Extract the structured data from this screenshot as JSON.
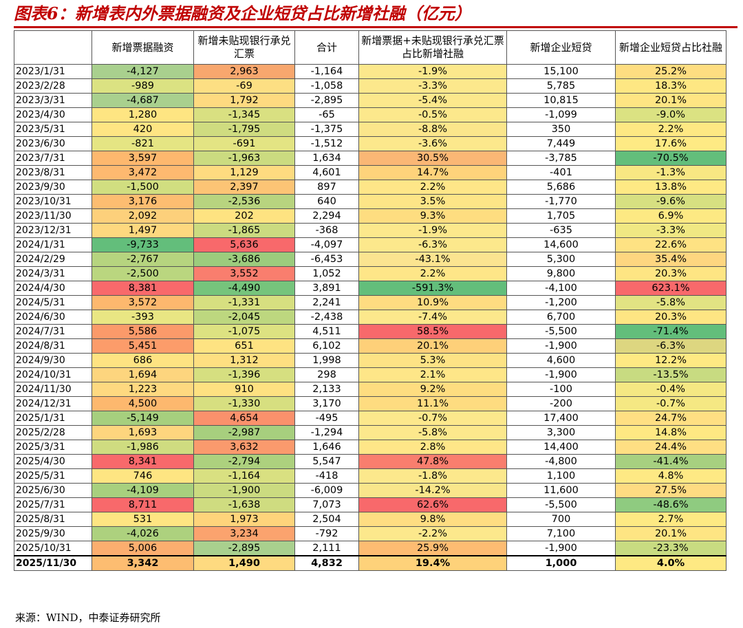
{
  "title": "图表6：新增表内外票据融资及企业短贷占比新增社融（亿元）",
  "headers": [
    "",
    "新增票据融资",
    "新增未贴现银行承兑汇票",
    "合计",
    "新增票据+未贴现银行承兑汇票占比新增社融",
    "新增企业短贷",
    "新增企业短贷占比社融"
  ],
  "rows": [
    [
      "2023/1/31",
      "-4,127",
      "2,963",
      "-1,164",
      "-1.9%",
      "15,100",
      "25.2%"
    ],
    [
      "2023/2/28",
      "-989",
      "-69",
      "-1,058",
      "-3.3%",
      "5,785",
      "18.3%"
    ],
    [
      "2023/3/31",
      "-4,687",
      "1,792",
      "-2,895",
      "-5.4%",
      "10,815",
      "20.1%"
    ],
    [
      "2023/4/30",
      "1,280",
      "-1,345",
      "-65",
      "-0.5%",
      "-1,099",
      "-9.0%"
    ],
    [
      "2023/5/31",
      "420",
      "-1,795",
      "-1,375",
      "-8.8%",
      "350",
      "2.2%"
    ],
    [
      "2023/6/30",
      "-821",
      "-691",
      "-1,512",
      "-3.6%",
      "7,449",
      "17.6%"
    ],
    [
      "2023/7/31",
      "3,597",
      "-1,963",
      "1,634",
      "30.5%",
      "-3,785",
      "-70.5%"
    ],
    [
      "2023/8/31",
      "3,472",
      "1,129",
      "4,601",
      "14.7%",
      "-401",
      "-1.3%"
    ],
    [
      "2023/9/30",
      "-1,500",
      "2,397",
      "897",
      "2.2%",
      "5,686",
      "13.8%"
    ],
    [
      "2023/10/31",
      "3,176",
      "-2,536",
      "640",
      "3.5%",
      "-1,770",
      "-9.6%"
    ],
    [
      "2023/11/30",
      "2,092",
      "202",
      "2,294",
      "9.3%",
      "1,705",
      "6.9%"
    ],
    [
      "2023/12/31",
      "1,497",
      "-1,865",
      "-368",
      "-1.9%",
      "-635",
      "-3.3%"
    ],
    [
      "2024/1/31",
      "-9,733",
      "5,636",
      "-4,097",
      "-6.3%",
      "14,600",
      "22.6%"
    ],
    [
      "2024/2/29",
      "-2,767",
      "-3,686",
      "-6,453",
      "-43.1%",
      "5,300",
      "35.4%"
    ],
    [
      "2024/3/31",
      "-2,500",
      "3,552",
      "1,052",
      "2.2%",
      "9,800",
      "20.3%"
    ],
    [
      "2024/4/30",
      "8,381",
      "-4,490",
      "3,891",
      "-591.3%",
      "-4,100",
      "623.1%"
    ],
    [
      "2024/5/31",
      "3,572",
      "-1,331",
      "2,241",
      "10.9%",
      "-1,200",
      "-5.8%"
    ],
    [
      "2024/6/30",
      "-393",
      "-2,045",
      "-2,438",
      "-7.4%",
      "6,700",
      "20.3%"
    ],
    [
      "2024/7/31",
      "5,586",
      "-1,075",
      "4,511",
      "58.5%",
      "-5,500",
      "-71.4%"
    ],
    [
      "2024/8/31",
      "5,451",
      "651",
      "6,102",
      "20.1%",
      "-1,900",
      "-6.3%"
    ],
    [
      "2024/9/30",
      "686",
      "1,312",
      "1,998",
      "5.3%",
      "4,600",
      "12.2%"
    ],
    [
      "2024/10/31",
      "1,694",
      "-1,396",
      "298",
      "2.1%",
      "-1,900",
      "-13.5%"
    ],
    [
      "2024/11/30",
      "1,223",
      "910",
      "2,133",
      "9.2%",
      "-100",
      "-0.4%"
    ],
    [
      "2024/12/31",
      "4,500",
      "-1,330",
      "3,170",
      "11.1%",
      "-200",
      "-0.7%"
    ],
    [
      "2025/1/31",
      "-5,149",
      "4,654",
      "-495",
      "-0.7%",
      "17,400",
      "24.7%"
    ],
    [
      "2025/2/28",
      "1,693",
      "-2,987",
      "-1,294",
      "-5.8%",
      "3,300",
      "14.8%"
    ],
    [
      "2025/3/31",
      "-1,986",
      "3,632",
      "1,646",
      "2.8%",
      "14,400",
      "24.4%"
    ],
    [
      "2025/4/30",
      "8,341",
      "-2,794",
      "5,547",
      "47.8%",
      "-4,800",
      "-41.4%"
    ],
    [
      "2025/5/31",
      "746",
      "-1,164",
      "-418",
      "-1.8%",
      "1,100",
      "4.8%"
    ],
    [
      "2025/6/30",
      "-4,109",
      "-1,900",
      "-6,009",
      "-14.2%",
      "11,600",
      "27.5%"
    ],
    [
      "2025/7/31",
      "8,711",
      "-1,638",
      "7,073",
      "62.6%",
      "-5,500",
      "-48.6%"
    ],
    [
      "2025/8/31",
      "531",
      "1,973",
      "2,504",
      "9.8%",
      "700",
      "2.7%"
    ],
    [
      "2025/9/30",
      "-4,026",
      "3,234",
      "-792",
      "-2.2%",
      "7,100",
      "20.1%"
    ],
    [
      "2025/10/31",
      "5,006",
      "-2,895",
      "2,111",
      "25.9%",
      "-1,900",
      "-23.3%"
    ],
    [
      "2025/11/30",
      "3,342",
      "1,490",
      "4,832",
      "19.4%",
      "1,000",
      "4.0%"
    ]
  ],
  "cell_colors": [
    [
      "#a9d08e",
      "#f8a76e",
      "",
      "#fce88c",
      "",
      "#fedd81"
    ],
    [
      "#dbe282",
      "#fddf83",
      "",
      "#fce88c",
      "",
      "#fee783"
    ],
    [
      "#a9d08e",
      "#feda80",
      "",
      "#fce88c",
      "",
      "#fee583"
    ],
    [
      "#fee582",
      "#d9e081",
      "",
      "#fce88c",
      "",
      "#dbe282"
    ],
    [
      "#fee583",
      "#cfdc80",
      "",
      "#fbe68b",
      "",
      "#fee883"
    ],
    [
      "#e5e583",
      "#e3e483",
      "",
      "#fce88c",
      "",
      "#feea84"
    ],
    [
      "#fdb86e",
      "#cbdb80",
      "",
      "#fab775",
      "",
      "#63be7b"
    ],
    [
      "#fdb970",
      "#fedb80",
      "",
      "#fed37b",
      "",
      "#f8e783"
    ],
    [
      "#d1de80",
      "#fcc475",
      "",
      "#fee688",
      "",
      "#fee984"
    ],
    [
      "#fdbd71",
      "#b8d47f",
      "",
      "#fde587",
      "",
      "#d7e081"
    ],
    [
      "#fdd07b",
      "#fee381",
      "",
      "#fedd80",
      "",
      "#fde983"
    ],
    [
      "#fed87f",
      "#cbdb80",
      "",
      "#fce88c",
      "",
      "#f0e883"
    ],
    [
      "#63be7b",
      "#f8696b",
      "",
      "#fce88c",
      "",
      "#fee283"
    ],
    [
      "#b6d47f",
      "#9ccc7d",
      "",
      "#fbe490",
      "",
      "#fed680"
    ],
    [
      "#bad67f",
      "#f97e6e",
      "",
      "#fee688",
      "",
      "#fee583"
    ],
    [
      "#f8696b",
      "#76c47c",
      "",
      "#63be7b",
      "",
      "#f8696b"
    ],
    [
      "#fdb86e",
      "#d7df80",
      "",
      "#fedc81",
      "",
      "#e2e383"
    ],
    [
      "#e9e683",
      "#bdd77f",
      "",
      "#fce88c",
      "",
      "#fee583"
    ],
    [
      "#fb9a6a",
      "#dde281",
      "",
      "#f8696b",
      "",
      "#63be7b"
    ],
    [
      "#fc9c6a",
      "#fee382",
      "",
      "#fed079",
      "",
      "#ddd680"
    ],
    [
      "#fee382",
      "#fedf81",
      "",
      "#fde385",
      "",
      "#fee983"
    ],
    [
      "#fdd57e",
      "#d6df80",
      "",
      "#fee688",
      "",
      "#c8db81"
    ],
    [
      "#fed980",
      "#fee181",
      "",
      "#fedd80",
      "",
      "#f5e883"
    ],
    [
      "#fdb86e",
      "#d7df80",
      "",
      "#fedc80",
      "",
      "#f5e883"
    ],
    [
      "#a6cf7e",
      "#fa916c",
      "",
      "#fce88c",
      "",
      "#fedf83"
    ],
    [
      "#fdd57e",
      "#a7cf7e",
      "",
      "#fce88c",
      "",
      "#fee883"
    ],
    [
      "#cfdc80",
      "#fa9a6d",
      "",
      "#fee688",
      "",
      "#fedf83"
    ],
    [
      "#f8696b",
      "#add17e",
      "",
      "#f97e6e",
      "",
      "#a7d080"
    ],
    [
      "#fee582",
      "#d9e081",
      "",
      "#fce88c",
      "",
      "#fee984"
    ],
    [
      "#a8d07e",
      "#cbdb80",
      "",
      "#f9e68b",
      "",
      "#fedb82"
    ],
    [
      "#f8696b",
      "#cfdc80",
      "",
      "#f8696b",
      "",
      "#8fcb80"
    ],
    [
      "#fee582",
      "#fed47b",
      "",
      "#fedd82",
      "",
      "#fee983"
    ],
    [
      "#add17e",
      "#fba36e",
      "",
      "#fce88c",
      "",
      "#fee583"
    ],
    [
      "#fcae6f",
      "#a9d08e",
      "",
      "#fdbc72",
      "",
      "#c8db81"
    ],
    [
      "#fdbd71",
      "#feda80",
      "",
      "#fed27a",
      "",
      "#fee983"
    ]
  ],
  "source": "来源：WIND，中泰证券研究所"
}
